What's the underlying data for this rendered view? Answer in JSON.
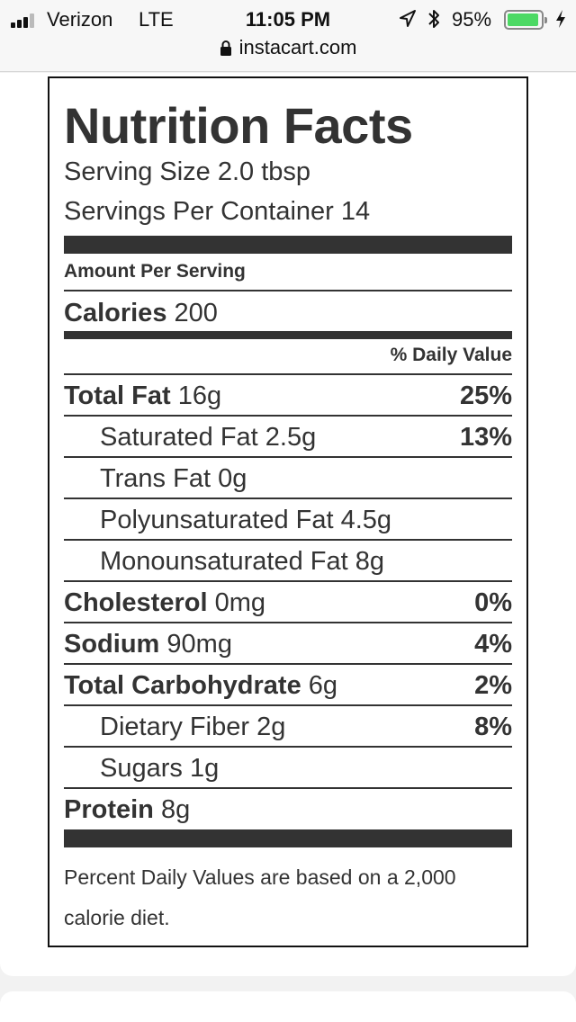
{
  "status_bar": {
    "carrier": "Verizon",
    "network": "LTE",
    "time": "11:05 PM",
    "battery_percent": "95%",
    "battery_level": 0.95,
    "icons": [
      "signal-icon",
      "location-arrow-icon",
      "bluetooth-icon",
      "battery-icon",
      "charging-bolt-icon"
    ]
  },
  "browser": {
    "url": "instacart.com",
    "lock_icon": "lock-icon"
  },
  "nutrition": {
    "title": "Nutrition Facts",
    "serving_size": "Serving Size 2.0 tbsp",
    "servings_per_container": "Servings Per Container 14",
    "amount_per_serving": "Amount Per Serving",
    "calories_label": "Calories",
    "calories_value": "200",
    "daily_value_header": "% Daily Value",
    "rows": [
      {
        "name": "Total Fat",
        "amount": "16g",
        "dv": "25%"
      },
      {
        "name": "Saturated Fat",
        "amount": "2.5g",
        "dv": "13%"
      },
      {
        "name": "Trans Fat",
        "amount": "0g",
        "dv": ""
      },
      {
        "name": "Polyunsaturated Fat",
        "amount": "4.5g",
        "dv": ""
      },
      {
        "name": "Monounsaturated Fat",
        "amount": "8g",
        "dv": ""
      },
      {
        "name": "Cholesterol",
        "amount": "0mg",
        "dv": "0%"
      },
      {
        "name": "Sodium",
        "amount": "90mg",
        "dv": "4%"
      },
      {
        "name": "Total Carbohydrate",
        "amount": "6g",
        "dv": "2%"
      },
      {
        "name": "Dietary Fiber",
        "amount": "2g",
        "dv": "8%"
      },
      {
        "name": "Sugars",
        "amount": "1g",
        "dv": ""
      },
      {
        "name": "Protein",
        "amount": "8g",
        "dv": ""
      }
    ],
    "footnote": "Percent Daily Values are based on a 2,000 calorie diet."
  }
}
